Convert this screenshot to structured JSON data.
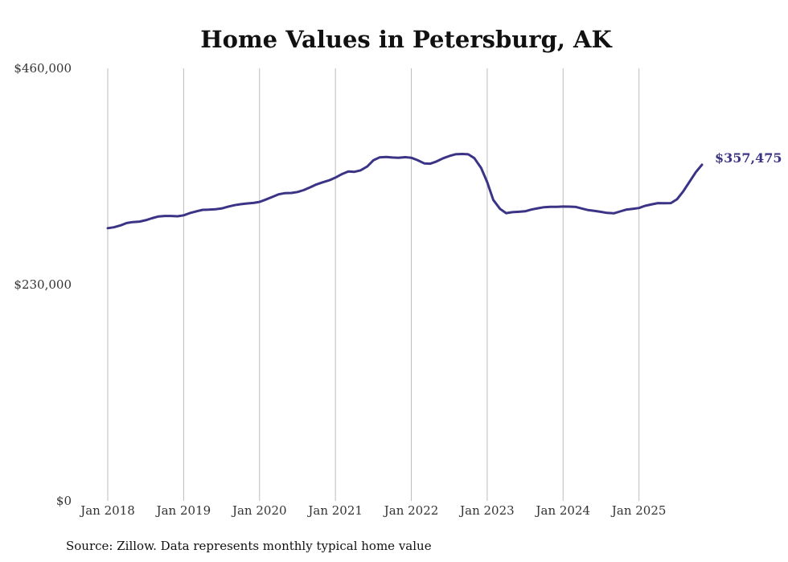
{
  "chart_data": {
    "type": "line",
    "title": "Home Values in Petersburg, AK",
    "xlabel": "",
    "ylabel": "",
    "ylim": [
      0,
      460000
    ],
    "yticks": [
      {
        "value": 0,
        "label": "$0"
      },
      {
        "value": 230000,
        "label": "$230,000"
      },
      {
        "value": 460000,
        "label": "$460,000"
      }
    ],
    "xticks": [
      {
        "value": 2018.0,
        "label": "Jan 2018"
      },
      {
        "value": 2019.0,
        "label": "Jan 2019"
      },
      {
        "value": 2020.0,
        "label": "Jan 2020"
      },
      {
        "value": 2021.0,
        "label": "Jan 2021"
      },
      {
        "value": 2022.0,
        "label": "Jan 2022"
      },
      {
        "value": 2023.0,
        "label": "Jan 2023"
      },
      {
        "value": 2024.0,
        "label": "Jan 2024"
      },
      {
        "value": 2025.0,
        "label": "Jan 2025"
      }
    ],
    "xlim": [
      2018.0,
      2025.83
    ],
    "grid": "vertical",
    "series": [
      {
        "name": "Typical home value",
        "color": "#3b3486",
        "x": [
          2018.0,
          2018.08,
          2018.17,
          2018.25,
          2018.33,
          2018.42,
          2018.5,
          2018.58,
          2018.67,
          2018.75,
          2018.83,
          2018.92,
          2019.0,
          2019.08,
          2019.17,
          2019.25,
          2019.33,
          2019.42,
          2019.5,
          2019.58,
          2019.67,
          2019.75,
          2019.83,
          2019.92,
          2020.0,
          2020.08,
          2020.17,
          2020.25,
          2020.33,
          2020.42,
          2020.5,
          2020.58,
          2020.67,
          2020.75,
          2020.83,
          2020.92,
          2021.0,
          2021.08,
          2021.17,
          2021.25,
          2021.33,
          2021.42,
          2021.5,
          2021.58,
          2021.67,
          2021.75,
          2021.83,
          2021.92,
          2022.0,
          2022.08,
          2022.17,
          2022.25,
          2022.33,
          2022.42,
          2022.5,
          2022.58,
          2022.67,
          2022.75,
          2022.83,
          2022.92,
          2023.0,
          2023.08,
          2023.17,
          2023.25,
          2023.33,
          2023.42,
          2023.5,
          2023.58,
          2023.67,
          2023.75,
          2023.83,
          2023.92,
          2024.0,
          2024.08,
          2024.17,
          2024.25,
          2024.33,
          2024.42,
          2024.5,
          2024.58,
          2024.67,
          2024.75,
          2024.83,
          2024.92,
          2025.0,
          2025.08,
          2025.17,
          2025.25,
          2025.33,
          2025.42,
          2025.5,
          2025.58,
          2025.67,
          2025.75,
          2025.83
        ],
        "values": [
          290000,
          291000,
          293000,
          295500,
          296500,
          297000,
          298500,
          300500,
          302500,
          303000,
          303000,
          302700,
          303700,
          306000,
          308000,
          309500,
          309700,
          310200,
          311000,
          312800,
          314500,
          315500,
          316300,
          316900,
          318000,
          320400,
          323300,
          326000,
          327200,
          327500,
          328500,
          330500,
          333500,
          336500,
          338800,
          341000,
          343800,
          347300,
          350400,
          350000,
          351500,
          355700,
          362200,
          365300,
          365800,
          365200,
          364900,
          365500,
          364900,
          362400,
          358900,
          358600,
          360900,
          364400,
          366700,
          368600,
          368900,
          368600,
          364500,
          354000,
          339000,
          320000,
          310500,
          306000,
          307000,
          307500,
          308000,
          309800,
          311200,
          312300,
          312800,
          312800,
          313000,
          312900,
          312600,
          310900,
          309300,
          308300,
          307400,
          306300,
          305800,
          307800,
          309700,
          310600,
          311500,
          313800,
          315400,
          316700,
          316600,
          316700,
          320700,
          328800,
          339900,
          349600,
          357475
        ]
      }
    ],
    "end_label": "$357,475"
  },
  "source": "Source: Zillow. Data represents monthly typical home value"
}
